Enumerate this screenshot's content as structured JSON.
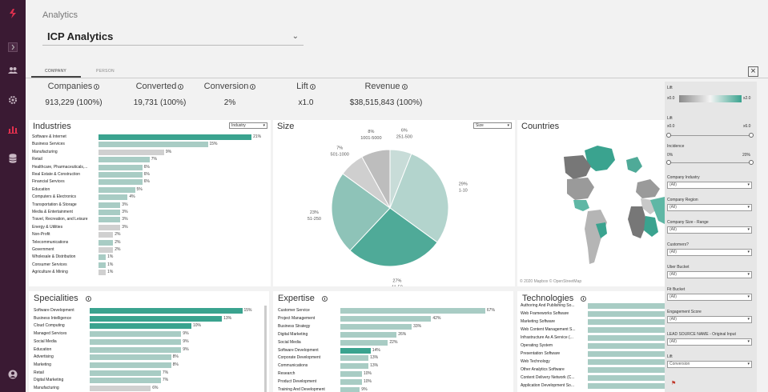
{
  "page": {
    "title": "Analytics",
    "dropdown": "ICP Analytics"
  },
  "tabs": [
    "COMPANY",
    "PERSON"
  ],
  "kpis": [
    {
      "label": "Companies",
      "value": "913,229 (100%)"
    },
    {
      "label": "Converted",
      "value": "19,731 (100%)"
    },
    {
      "label": "Conversion",
      "value": "2%"
    },
    {
      "label": "Lift",
      "value": "x1.0"
    },
    {
      "label": "Revenue",
      "value": "$38,515,843 (100%)"
    }
  ],
  "industries": {
    "title": "Industries",
    "selector": "Industry",
    "rows": [
      {
        "label": "Software & Internet",
        "pct": 21,
        "value": "21%",
        "color": "#3aa38f"
      },
      {
        "label": "Business Services",
        "pct": 15,
        "value": "15%",
        "color": "#a8ccc4"
      },
      {
        "label": "Manufacturing",
        "pct": 9,
        "value": "9%",
        "color": "#d0d0d0"
      },
      {
        "label": "Retail",
        "pct": 7,
        "value": "7%",
        "color": "#a8ccc4"
      },
      {
        "label": "Healthcare, Pharmaceuticals,...",
        "pct": 6,
        "value": "6%",
        "color": "#a8ccc4"
      },
      {
        "label": "Real Estate & Construction",
        "pct": 6,
        "value": "6%",
        "color": "#a8ccc4"
      },
      {
        "label": "Financial Services",
        "pct": 6,
        "value": "6%",
        "color": "#a8ccc4"
      },
      {
        "label": "Education",
        "pct": 5,
        "value": "5%",
        "color": "#a8ccc4"
      },
      {
        "label": "Computers & Electronics",
        "pct": 4,
        "value": "4%",
        "color": "#a8ccc4"
      },
      {
        "label": "Transportation & Storage",
        "pct": 3,
        "value": "3%",
        "color": "#a8ccc4"
      },
      {
        "label": "Media & Entertainment",
        "pct": 3,
        "value": "3%",
        "color": "#a8ccc4"
      },
      {
        "label": "Travel, Recreation, and Leisure",
        "pct": 3,
        "value": "3%",
        "color": "#a8ccc4"
      },
      {
        "label": "Energy & Utilities",
        "pct": 3,
        "value": "3%",
        "color": "#d0d0d0"
      },
      {
        "label": "Non-Profit",
        "pct": 2,
        "value": "2%",
        "color": "#d0d0d0"
      },
      {
        "label": "Telecommunications",
        "pct": 2,
        "value": "2%",
        "color": "#a8ccc4"
      },
      {
        "label": "Government",
        "pct": 2,
        "value": "2%",
        "color": "#d0d0d0"
      },
      {
        "label": "Wholesale & Distribution",
        "pct": 1,
        "value": "1%",
        "color": "#a8ccc4"
      },
      {
        "label": "Consumer Services",
        "pct": 1,
        "value": "1%",
        "color": "#a8ccc4"
      },
      {
        "label": "Agriculture & Mining",
        "pct": 1,
        "value": "1%",
        "color": "#d0d0d0"
      }
    ]
  },
  "size": {
    "title": "Size",
    "selector": "Size",
    "slices": [
      {
        "range": "251-500",
        "pct": "6%",
        "value": 6,
        "color": "#c8dcd8"
      },
      {
        "range": "1-10",
        "pct": "29%",
        "value": 29,
        "color": "#b3d4cd"
      },
      {
        "range": "11-50",
        "pct": "27%",
        "value": 27,
        "color": "#4faa98"
      },
      {
        "range": "51-250",
        "pct": "23%",
        "value": 23,
        "color": "#8ec3b8"
      },
      {
        "range": "501-1000",
        "pct": "7%",
        "value": 7,
        "color": "#cfcfcf"
      },
      {
        "range": "1001-5000",
        "pct": "8%",
        "value": 8,
        "color": "#bdbdbd"
      }
    ]
  },
  "countries": {
    "title": "Countries",
    "attribution": "© 2020 Mapbox  © OpenStreetMap"
  },
  "specialities": {
    "title": "Specialities",
    "rows": [
      {
        "label": "Software Development",
        "pct": 15,
        "value": "15%",
        "color": "#3aa38f"
      },
      {
        "label": "Business Intelligence",
        "pct": 13,
        "value": "13%",
        "color": "#3aa38f"
      },
      {
        "label": "Cloud Computing",
        "pct": 10,
        "value": "10%",
        "color": "#3aa38f"
      },
      {
        "label": "Managed Services",
        "pct": 9,
        "value": "9%",
        "color": "#a8ccc4"
      },
      {
        "label": "Social Media",
        "pct": 9,
        "value": "9%",
        "color": "#a8ccc4"
      },
      {
        "label": "Education",
        "pct": 9,
        "value": "9%",
        "color": "#a8ccc4"
      },
      {
        "label": "Advertising",
        "pct": 8,
        "value": "8%",
        "color": "#a8ccc4"
      },
      {
        "label": "Marketing",
        "pct": 8,
        "value": "8%",
        "color": "#a8ccc4"
      },
      {
        "label": "Retail",
        "pct": 7,
        "value": "7%",
        "color": "#a8ccc4"
      },
      {
        "label": "Digital Marketing",
        "pct": 7,
        "value": "7%",
        "color": "#a8ccc4"
      },
      {
        "label": "Manufacturing",
        "pct": 6,
        "value": "6%",
        "color": "#d0d0d0"
      }
    ]
  },
  "expertise": {
    "title": "Expertise",
    "rows": [
      {
        "label": "Customer Service",
        "pct": 67,
        "value": "67%",
        "color": "#a8ccc4"
      },
      {
        "label": "Project Management",
        "pct": 42,
        "value": "42%",
        "color": "#a8ccc4"
      },
      {
        "label": "Business Strategy",
        "pct": 33,
        "value": "33%",
        "color": "#a8ccc4"
      },
      {
        "label": "Digital Marketing",
        "pct": 26,
        "value": "26%",
        "color": "#a8ccc4"
      },
      {
        "label": "Social Media",
        "pct": 22,
        "value": "22%",
        "color": "#a8ccc4"
      },
      {
        "label": "Software Development",
        "pct": 14,
        "value": "14%",
        "color": "#3aa38f"
      },
      {
        "label": "Corporate Development",
        "pct": 13,
        "value": "13%",
        "color": "#a8ccc4"
      },
      {
        "label": "Communications",
        "pct": 13,
        "value": "13%",
        "color": "#a8ccc4"
      },
      {
        "label": "Research",
        "pct": 10,
        "value": "10%",
        "color": "#a8ccc4"
      },
      {
        "label": "Product Development",
        "pct": 10,
        "value": "10%",
        "color": "#a8ccc4"
      },
      {
        "label": "Training And Development",
        "pct": 9,
        "value": "9%",
        "color": "#a8ccc4"
      }
    ]
  },
  "technologies": {
    "title": "Technologies",
    "rows": [
      {
        "label": "Authoring And Publishing So..."
      },
      {
        "label": "Web Frameworks Software"
      },
      {
        "label": "Marketing Software"
      },
      {
        "label": "Web Content Management S..."
      },
      {
        "label": "Infrastructure As A Service (..."
      },
      {
        "label": "Operating System"
      },
      {
        "label": "Presentation Software"
      },
      {
        "label": "Web Technology"
      },
      {
        "label": "Other Analytics Software"
      },
      {
        "label": "Content Delivery Network (C..."
      },
      {
        "label": "Application Development So..."
      }
    ]
  },
  "filters": {
    "lift_legend": {
      "label": "Lift",
      "min": "x0.0",
      "max": "x2.0"
    },
    "lift": {
      "label": "Lift",
      "min": "x0.0",
      "max": "x6.0"
    },
    "incidence": {
      "label": "Incidence",
      "min": "0%",
      "max": "20%"
    },
    "selects": [
      {
        "label": "Company Industry",
        "value": "(All)"
      },
      {
        "label": "Company Region",
        "value": "(All)"
      },
      {
        "label": "Company Size - Range",
        "value": "(All)"
      },
      {
        "label": "Customers?",
        "value": "(All)"
      },
      {
        "label": "Uber Bucket",
        "value": "(All)"
      },
      {
        "label": "Fit Bucket",
        "value": "(All)"
      },
      {
        "label": "Engagement Score",
        "value": "(All)"
      },
      {
        "label": "LEAD SOURCE NAME - Original Input",
        "value": "(All)"
      },
      {
        "label": "Lift",
        "value": "Conversion"
      }
    ]
  },
  "colors": {
    "sidebar": "#3a1a33",
    "accent": "#3aa38f",
    "brand": "#e0304e"
  }
}
